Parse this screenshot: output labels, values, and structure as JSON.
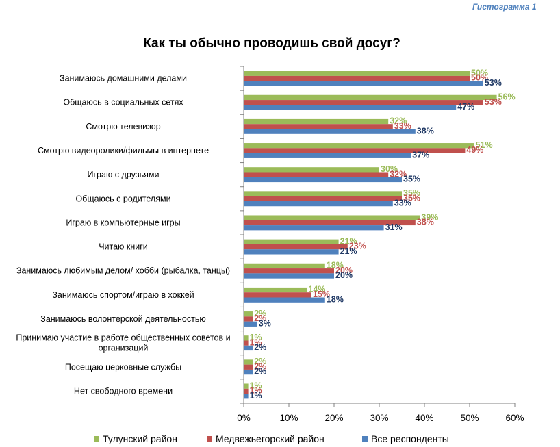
{
  "header_label": "Гистограмма 1",
  "chart_data": {
    "type": "bar",
    "orientation": "horizontal",
    "title": "Как ты обычно проводишь свой досуг?",
    "categories": [
      [
        "Занимаюсь домашними делами"
      ],
      [
        "Общаюсь в социальных сетях"
      ],
      [
        "Смотрю телевизор"
      ],
      [
        "Смотрю видеоролики/фильмы в интернете"
      ],
      [
        "Играю с друзьями"
      ],
      [
        "Общаюсь с родителями"
      ],
      [
        "Играю в компьютерные игры"
      ],
      [
        "Читаю книги"
      ],
      [
        "Занимаюсь любимым делом/ хобби (рыбалка, танцы)"
      ],
      [
        "Занимаюсь спортом/играю в хоккей"
      ],
      [
        "Занимаюсь волонтерской деятельностью"
      ],
      [
        "Принимаю участие в работе общественных советов и",
        "организаций"
      ],
      [
        "Посещаю церковные службы"
      ],
      [
        "Нет свободного времени"
      ]
    ],
    "series": [
      {
        "name": "Тулунский район",
        "color": "#9bbb59",
        "values": [
          50,
          56,
          32,
          51,
          30,
          35,
          39,
          21,
          18,
          14,
          2,
          1,
          2,
          1
        ]
      },
      {
        "name": "Медвежьегорский район",
        "color": "#c0504d",
        "values": [
          50,
          53,
          33,
          49,
          32,
          35,
          38,
          23,
          20,
          15,
          2,
          1,
          2,
          1
        ]
      },
      {
        "name": "Все респонденты",
        "color": "#4f81bd",
        "label_color": "#1f3864",
        "values": [
          53,
          47,
          38,
          37,
          35,
          33,
          31,
          21,
          20,
          18,
          3,
          2,
          2,
          1
        ]
      }
    ],
    "xlim": [
      0,
      60
    ],
    "xticks": [
      "0%",
      "10%",
      "20%",
      "30%",
      "40%",
      "50%",
      "60%"
    ],
    "value_suffix": "%",
    "legend_position": "bottom",
    "grid": false
  }
}
